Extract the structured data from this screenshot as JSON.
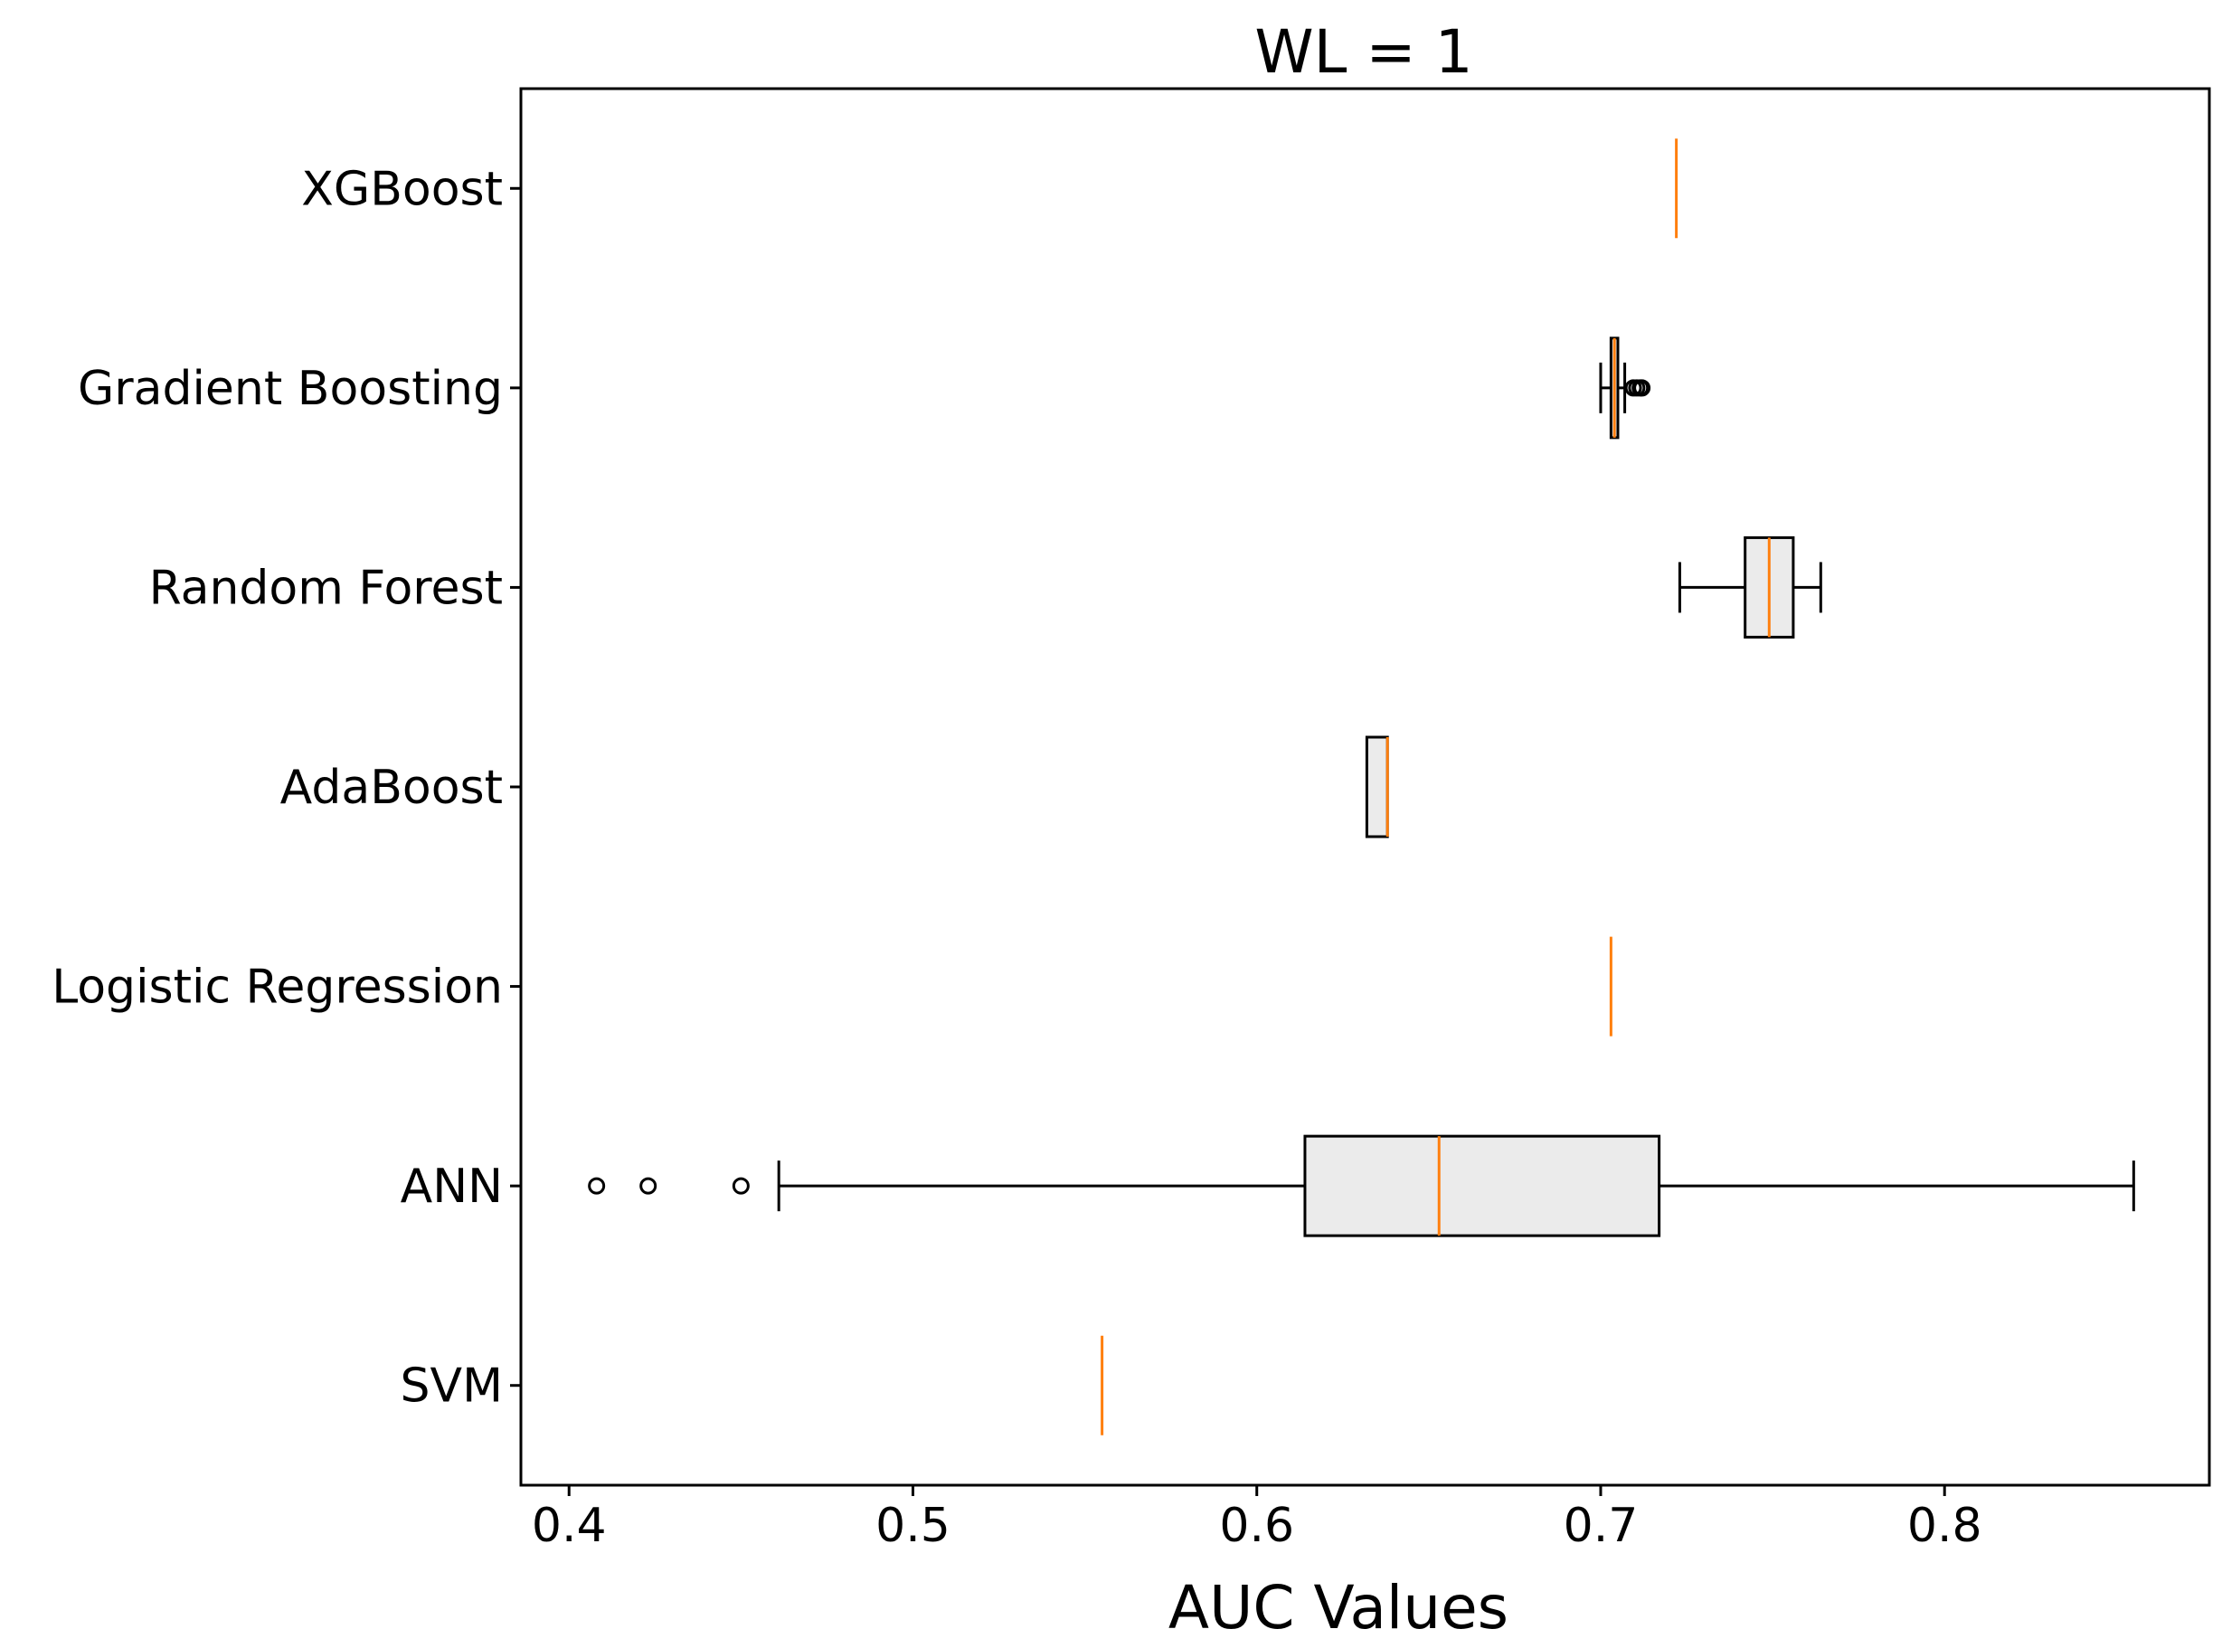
{
  "chart_data": {
    "type": "boxplot",
    "orientation": "horizontal",
    "title": "WL = 1",
    "xlabel": "AUC Values",
    "ylabel": "",
    "xlim": [
      0.386,
      0.877
    ],
    "xticks": [
      0.4,
      0.5,
      0.6,
      0.7,
      0.8
    ],
    "xtick_labels": [
      "0.4",
      "0.5",
      "0.6",
      "0.7",
      "0.8"
    ],
    "colors": {
      "box_fill": "#ebebeb",
      "box_edge": "#000000",
      "median": "#ff7f0e"
    },
    "series": [
      {
        "name": "XGBoost",
        "whisker_low": 0.722,
        "q1": 0.722,
        "median": 0.722,
        "q3": 0.722,
        "whisker_high": 0.722,
        "outliers": []
      },
      {
        "name": "Gradient Boosting",
        "whisker_low": 0.7,
        "q1": 0.703,
        "median": 0.704,
        "q3": 0.705,
        "whisker_high": 0.707,
        "outliers": [
          0.7095,
          0.7105,
          0.7115,
          0.712
        ]
      },
      {
        "name": "Random Forest",
        "whisker_low": 0.723,
        "q1": 0.742,
        "median": 0.749,
        "q3": 0.756,
        "whisker_high": 0.764,
        "outliers": []
      },
      {
        "name": "AdaBoost",
        "whisker_low": 0.632,
        "q1": 0.632,
        "median": 0.638,
        "q3": 0.638,
        "whisker_high": 0.638,
        "outliers": []
      },
      {
        "name": "Logistic Regression",
        "whisker_low": 0.703,
        "q1": 0.703,
        "median": 0.703,
        "q3": 0.703,
        "whisker_high": 0.703,
        "outliers": []
      },
      {
        "name": "ANN",
        "whisker_low": 0.461,
        "q1": 0.614,
        "median": 0.653,
        "q3": 0.717,
        "whisker_high": 0.855,
        "outliers": [
          0.408,
          0.423,
          0.45
        ]
      },
      {
        "name": "SVM",
        "whisker_low": 0.555,
        "q1": 0.555,
        "median": 0.555,
        "q3": 0.555,
        "whisker_high": 0.555,
        "outliers": []
      }
    ]
  }
}
